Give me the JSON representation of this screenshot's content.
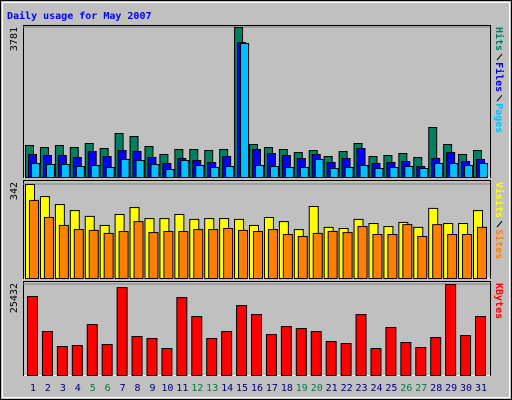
{
  "chart_data": [
    {
      "type": "bar",
      "title": "Daily usage for May 2007",
      "categories": [
        "1",
        "2",
        "3",
        "4",
        "5",
        "6",
        "7",
        "8",
        "9",
        "10",
        "11",
        "12",
        "13",
        "14",
        "15",
        "16",
        "17",
        "18",
        "19",
        "20",
        "21",
        "22",
        "23",
        "24",
        "25",
        "26",
        "27",
        "28",
        "29",
        "30",
        "31"
      ],
      "category_colors": [
        "#000080",
        "#000080",
        "#000080",
        "#000080",
        "#008040",
        "#008040",
        "#000080",
        "#000080",
        "#000080",
        "#000080",
        "#000080",
        "#008040",
        "#008040",
        "#000080",
        "#000080",
        "#000080",
        "#000080",
        "#000080",
        "#008040",
        "#008040",
        "#000080",
        "#000080",
        "#000080",
        "#000080",
        "#000080",
        "#008040",
        "#008040",
        "#000080",
        "#000080",
        "#000080",
        "#000080"
      ],
      "ylim": [
        0,
        3781
      ],
      "yticks": [
        3781
      ],
      "series": [
        {
          "name": "Hits",
          "color": "#008060",
          "values": [
            807,
            756,
            807,
            756,
            857,
            731,
            1109,
            1033,
            781,
            580,
            706,
            706,
            680,
            706,
            3781,
            832,
            756,
            706,
            630,
            680,
            529,
            655,
            857,
            529,
            554,
            605,
            504,
            1260,
            832,
            580,
            680
          ]
        },
        {
          "name": "Files",
          "color": "#0000ff",
          "values": [
            580,
            554,
            554,
            504,
            655,
            529,
            680,
            655,
            504,
            353,
            479,
            428,
            378,
            529,
            3400,
            706,
            605,
            554,
            479,
            580,
            378,
            479,
            731,
            353,
            378,
            403,
            277,
            479,
            630,
            403,
            454
          ]
        },
        {
          "name": "Pages",
          "color": "#00c0ff",
          "values": [
            353,
            328,
            328,
            277,
            302,
            252,
            454,
            428,
            328,
            202,
            428,
            302,
            252,
            277,
            3377,
            302,
            277,
            252,
            252,
            454,
            227,
            252,
            302,
            227,
            252,
            277,
            227,
            353,
            353,
            302,
            353
          ]
        }
      ]
    },
    {
      "type": "bar",
      "ylim": [
        0,
        342
      ],
      "yticks": [
        342
      ],
      "series": [
        {
          "name": "Visits",
          "color": "#ffff00",
          "values": [
            342,
            298,
            269,
            247,
            226,
            193,
            233,
            258,
            218,
            218,
            233,
            215,
            218,
            218,
            215,
            193,
            222,
            207,
            178,
            262,
            186,
            182,
            215,
            200,
            189,
            204,
            186,
            255,
            200,
            200,
            247
          ]
        },
        {
          "name": "Sites",
          "color": "#ff8000",
          "values": [
            284,
            222,
            193,
            178,
            175,
            164,
            171,
            207,
            167,
            171,
            171,
            178,
            178,
            182,
            175,
            171,
            178,
            160,
            153,
            164,
            171,
            167,
            189,
            160,
            160,
            196,
            153,
            196,
            160,
            160,
            186
          ]
        }
      ]
    },
    {
      "type": "bar",
      "ylim": [
        0,
        25432
      ],
      "yticks": [
        25432
      ],
      "series": [
        {
          "name": "KBytes",
          "color": "#ff0000",
          "values": [
            22078,
            12282,
            8095,
            8374,
            14236,
            8653,
            24564,
            10886,
            10328,
            7537,
            21773,
            16469,
            10328,
            12282,
            19539,
            17027,
            11445,
            13678,
            13119,
            12282,
            9490,
            8932,
            17027,
            7537,
            13399,
            9211,
            7816,
            10607,
            25432,
            11166,
            16469
          ]
        }
      ]
    }
  ]
}
